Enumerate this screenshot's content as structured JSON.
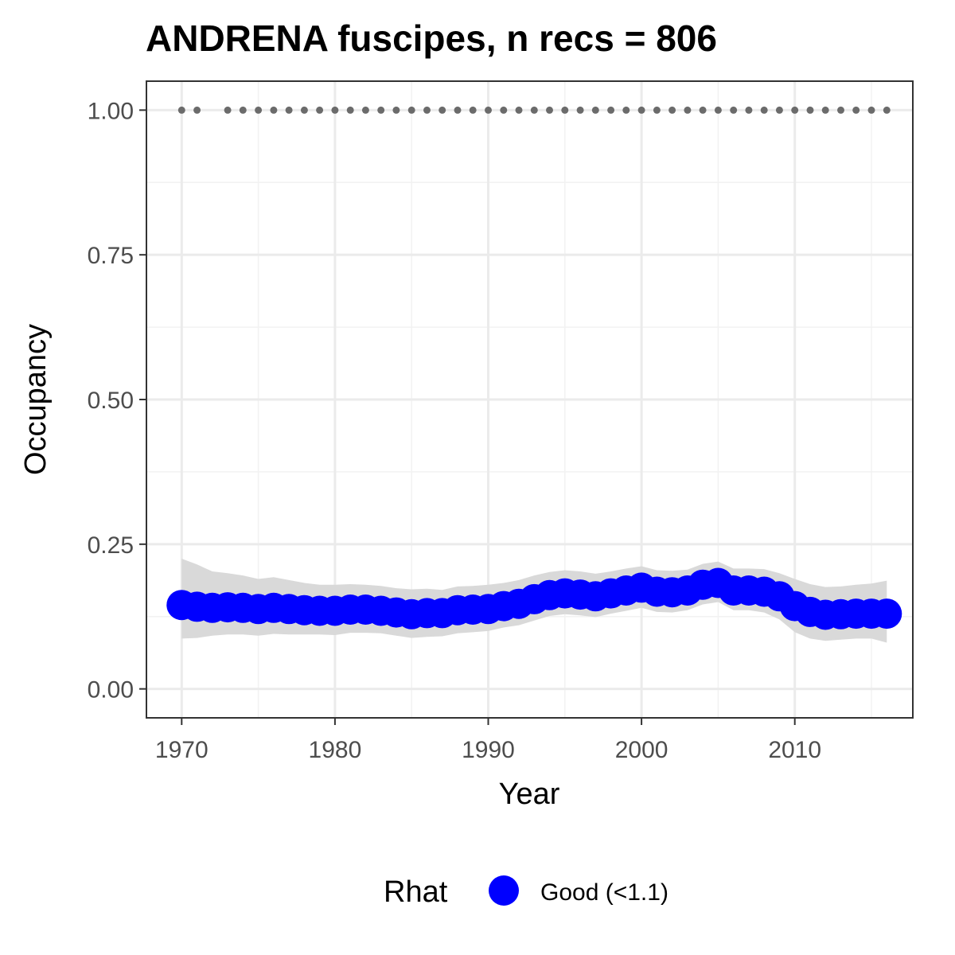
{
  "chart_data": {
    "type": "line",
    "title": "ANDRENA fuscipes, n recs = 806",
    "xlabel": "Year",
    "ylabel": "Occupancy",
    "xlim": [
      1967.7,
      2017.7
    ],
    "ylim": [
      -0.05,
      1.05
    ],
    "x_ticks": [
      1970,
      1980,
      1990,
      2000,
      2010
    ],
    "y_ticks": [
      0,
      0.25,
      0.5,
      0.75,
      1.0
    ],
    "y_tick_labels": [
      "0.00",
      "0.25",
      "0.50",
      "0.75",
      "1.00"
    ],
    "grid": true,
    "legend": {
      "title": "Rhat",
      "placement": "bottom",
      "entries": [
        {
          "label": "Good (<1.1)",
          "color": "#0000ff"
        }
      ]
    },
    "colors": {
      "line": "#0000ff",
      "ribbon": "#d9d9d9",
      "records": "#6b6b6b"
    },
    "series": [
      {
        "name": "Good (<1.1)",
        "x": [
          1970,
          1971,
          1972,
          1973,
          1974,
          1975,
          1976,
          1977,
          1978,
          1979,
          1980,
          1981,
          1982,
          1983,
          1984,
          1985,
          1986,
          1987,
          1988,
          1989,
          1990,
          1991,
          1992,
          1993,
          1994,
          1995,
          1996,
          1997,
          1998,
          1999,
          2000,
          2001,
          2002,
          2003,
          2004,
          2005,
          2006,
          2007,
          2008,
          2009,
          2010,
          2011,
          2012,
          2013,
          2014,
          2015,
          2016
        ],
        "values": [
          0.145,
          0.142,
          0.14,
          0.141,
          0.14,
          0.138,
          0.14,
          0.138,
          0.136,
          0.135,
          0.135,
          0.137,
          0.137,
          0.135,
          0.132,
          0.129,
          0.131,
          0.131,
          0.136,
          0.137,
          0.138,
          0.143,
          0.147,
          0.155,
          0.162,
          0.165,
          0.163,
          0.16,
          0.165,
          0.17,
          0.175,
          0.168,
          0.167,
          0.17,
          0.18,
          0.183,
          0.17,
          0.17,
          0.168,
          0.16,
          0.143,
          0.133,
          0.128,
          0.129,
          0.13,
          0.13,
          0.13
        ],
        "lower": [
          0.087,
          0.088,
          0.092,
          0.094,
          0.094,
          0.092,
          0.095,
          0.094,
          0.094,
          0.094,
          0.093,
          0.097,
          0.097,
          0.096,
          0.092,
          0.088,
          0.09,
          0.091,
          0.096,
          0.098,
          0.1,
          0.106,
          0.11,
          0.118,
          0.126,
          0.129,
          0.127,
          0.124,
          0.13,
          0.135,
          0.14,
          0.133,
          0.132,
          0.136,
          0.146,
          0.15,
          0.136,
          0.136,
          0.132,
          0.12,
          0.098,
          0.087,
          0.083,
          0.085,
          0.087,
          0.087,
          0.08
        ],
        "upper": [
          0.225,
          0.215,
          0.203,
          0.2,
          0.196,
          0.19,
          0.193,
          0.188,
          0.183,
          0.18,
          0.18,
          0.181,
          0.18,
          0.178,
          0.174,
          0.172,
          0.173,
          0.171,
          0.177,
          0.178,
          0.18,
          0.183,
          0.188,
          0.196,
          0.202,
          0.205,
          0.203,
          0.199,
          0.203,
          0.208,
          0.212,
          0.205,
          0.204,
          0.206,
          0.216,
          0.22,
          0.208,
          0.208,
          0.207,
          0.2,
          0.19,
          0.181,
          0.176,
          0.177,
          0.18,
          0.182,
          0.187
        ]
      }
    ],
    "record_years": [
      1970,
      1971,
      1973,
      1974,
      1975,
      1976,
      1977,
      1978,
      1979,
      1980,
      1981,
      1982,
      1983,
      1984,
      1985,
      1986,
      1987,
      1988,
      1989,
      1990,
      1991,
      1992,
      1993,
      1994,
      1995,
      1996,
      1997,
      1998,
      1999,
      2000,
      2001,
      2002,
      2003,
      2004,
      2005,
      2006,
      2007,
      2008,
      2009,
      2010,
      2011,
      2012,
      2013,
      2014,
      2015,
      2016
    ],
    "record_value": 1.0
  }
}
